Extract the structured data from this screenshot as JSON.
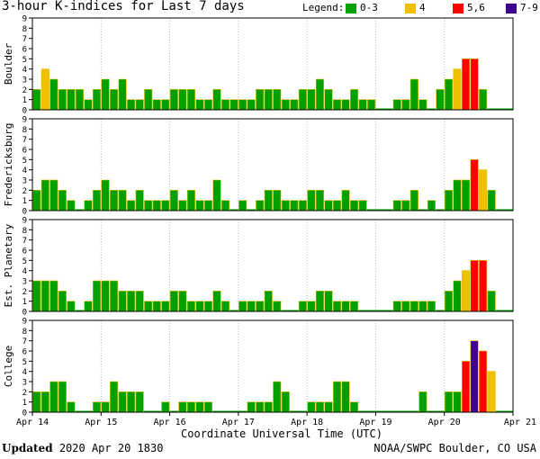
{
  "title": "3-hour K-indices for Last 7 days",
  "legend": {
    "label": "Legend:",
    "items": [
      {
        "label": "0-3",
        "color": "#00a000"
      },
      {
        "label": "4",
        "color": "#f0c000"
      },
      {
        "label": "5,6",
        "color": "#ff0000"
      },
      {
        "label": "7-9",
        "color": "#400090"
      }
    ]
  },
  "footer": {
    "updated_label": "Updated",
    "updated_value": "2020 Apr 20 1830",
    "source": "NOAA/SWPC Boulder, CO USA"
  },
  "chart_data": {
    "type": "bar",
    "xlabel": "Coordinate Universal Time (UTC)",
    "x_ticks": [
      "Apr 14",
      "Apr 15",
      "Apr 16",
      "Apr 17",
      "Apr 18",
      "Apr 19",
      "Apr 20",
      "Apr 21"
    ],
    "ylim": [
      0,
      9
    ],
    "y_ticks": [
      "0",
      "1",
      "2",
      "3",
      "4",
      "5",
      "6",
      "7",
      "8",
      "9"
    ],
    "bins_per_day": 8,
    "panels": [
      {
        "name": "Boulder",
        "values": [
          2,
          4,
          3,
          2,
          2,
          2,
          1,
          2,
          3,
          2,
          3,
          1,
          1,
          2,
          1,
          1,
          2,
          2,
          2,
          1,
          1,
          2,
          1,
          1,
          1,
          1,
          2,
          2,
          2,
          1,
          1,
          2,
          2,
          3,
          2,
          1,
          1,
          2,
          1,
          1,
          0,
          0,
          1,
          1,
          3,
          1,
          0,
          2,
          3,
          4,
          5,
          5,
          2,
          0,
          0,
          0
        ]
      },
      {
        "name": "Fredericksburg",
        "values": [
          2,
          3,
          3,
          2,
          1,
          0,
          1,
          2,
          3,
          2,
          2,
          1,
          2,
          1,
          1,
          1,
          2,
          1,
          2,
          1,
          1,
          3,
          1,
          0,
          1,
          0,
          1,
          2,
          2,
          1,
          1,
          1,
          2,
          2,
          1,
          1,
          2,
          1,
          1,
          0,
          0,
          0,
          1,
          1,
          2,
          0,
          1,
          0,
          2,
          3,
          3,
          5,
          4,
          2,
          0,
          0
        ]
      },
      {
        "name": "Est. Planetary",
        "values": [
          3,
          3,
          3,
          2,
          1,
          0,
          1,
          3,
          3,
          3,
          2,
          2,
          2,
          1,
          1,
          1,
          2,
          2,
          1,
          1,
          1,
          2,
          1,
          0,
          1,
          1,
          1,
          2,
          1,
          0,
          0,
          1,
          1,
          2,
          2,
          1,
          1,
          1,
          0,
          0,
          0,
          0,
          1,
          1,
          1,
          1,
          1,
          0,
          2,
          3,
          4,
          5,
          5,
          2,
          0,
          0
        ]
      },
      {
        "name": "College",
        "values": [
          2,
          2,
          3,
          3,
          1,
          0,
          0,
          1,
          1,
          3,
          2,
          2,
          2,
          0,
          0,
          1,
          0,
          1,
          1,
          1,
          1,
          0,
          0,
          0,
          0,
          1,
          1,
          1,
          3,
          2,
          0,
          0,
          1,
          1,
          1,
          3,
          3,
          1,
          0,
          0,
          0,
          0,
          0,
          0,
          0,
          2,
          0,
          0,
          2,
          2,
          5,
          7,
          6,
          4,
          0,
          0
        ]
      }
    ]
  }
}
